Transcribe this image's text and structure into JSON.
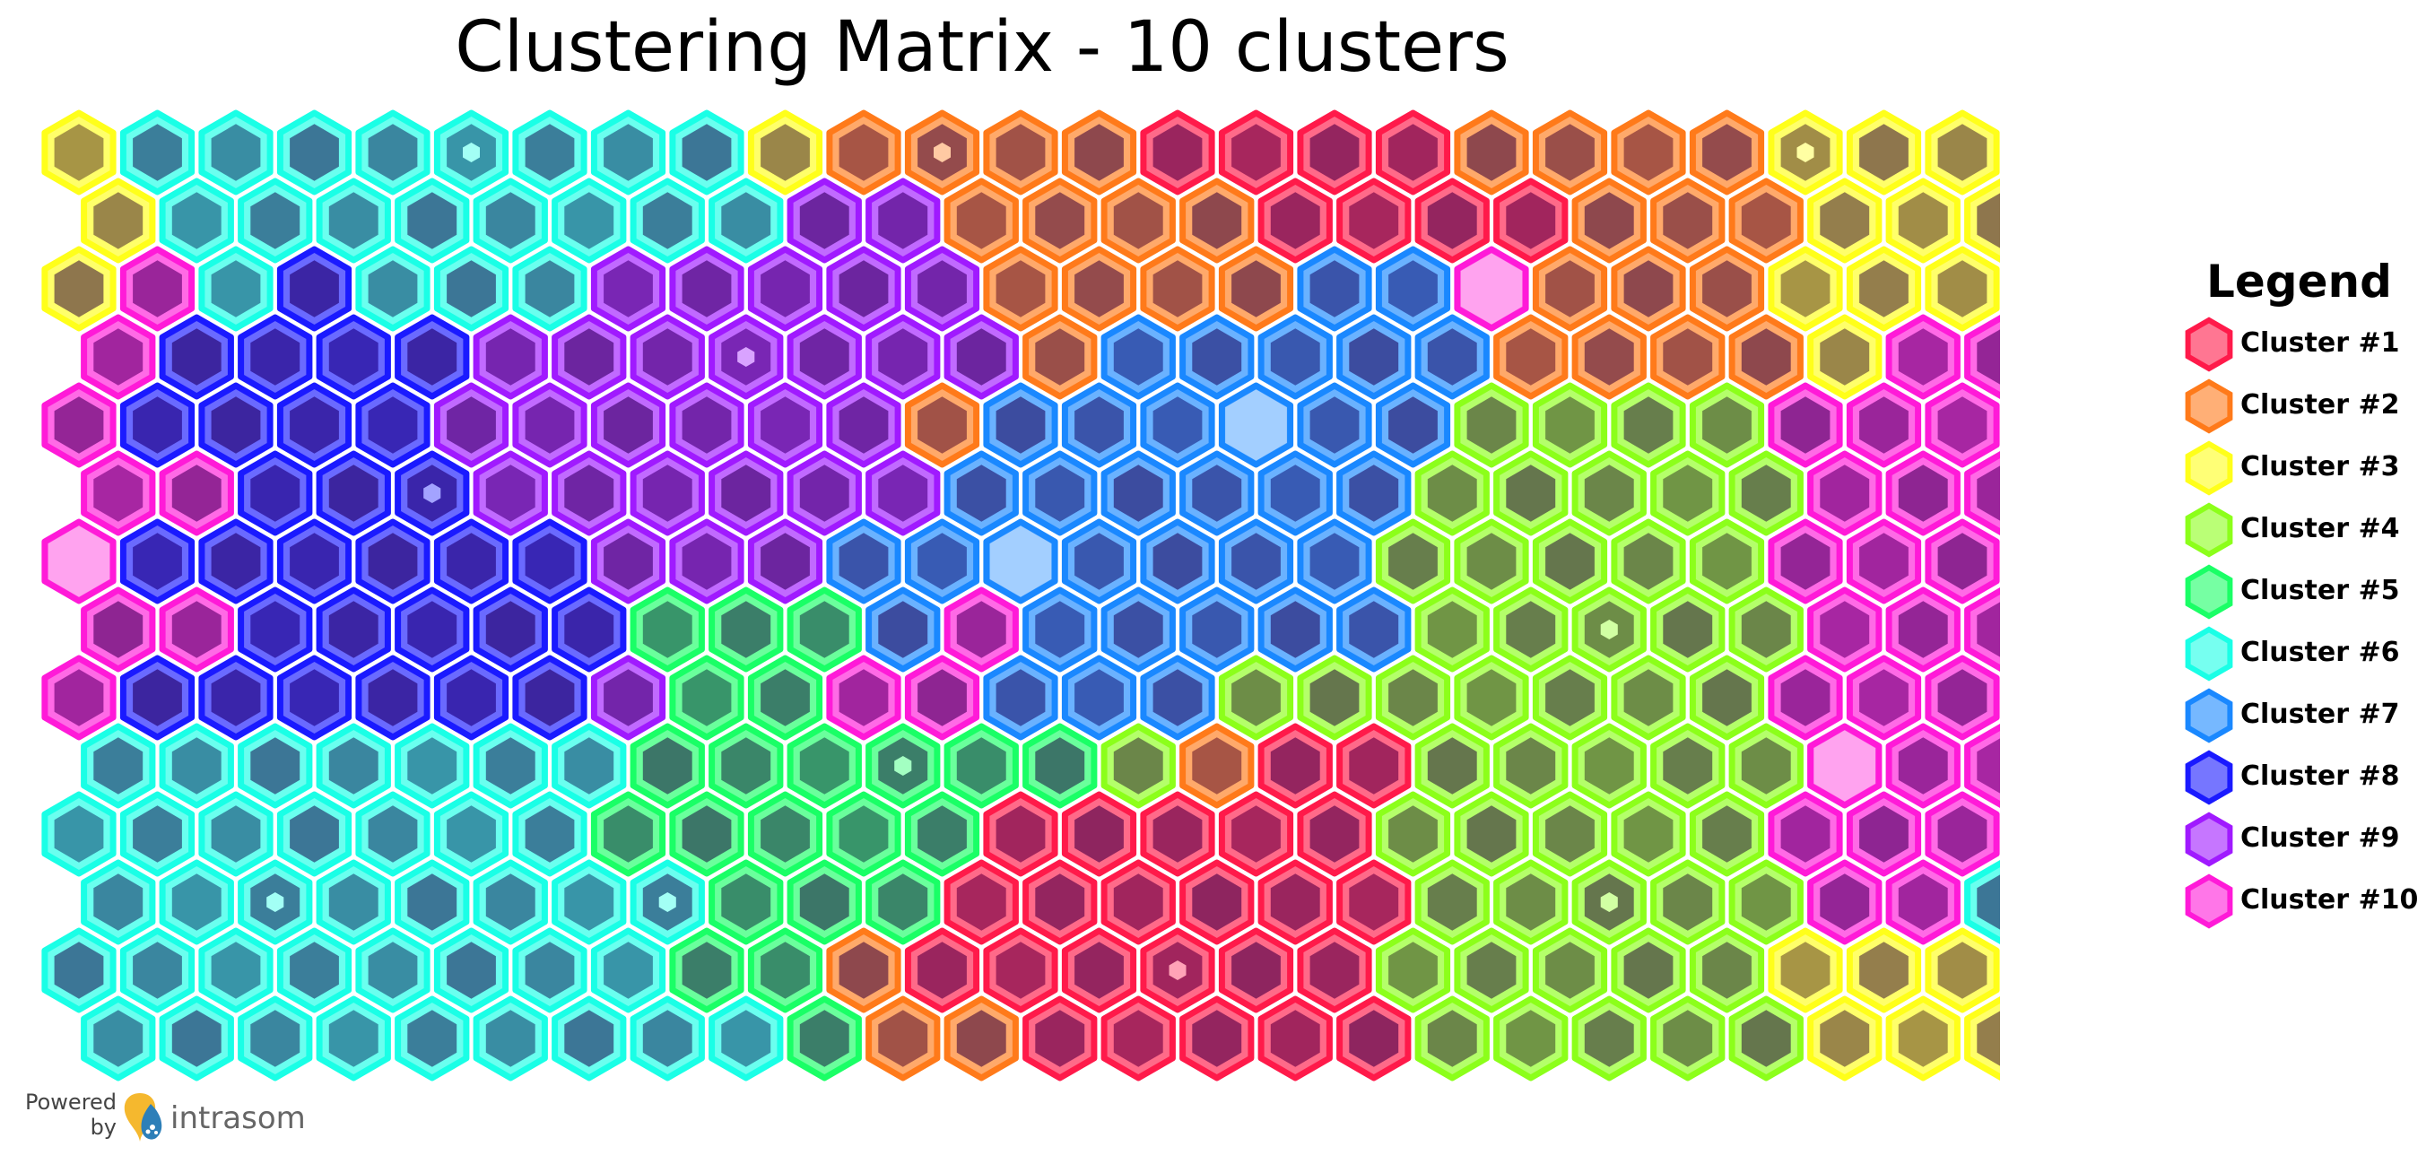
{
  "chart_data": {
    "type": "heatmap",
    "title": "Clustering Matrix - 10 clusters",
    "grid": {
      "columns": 25,
      "rows": 14,
      "hex": true
    },
    "legend": {
      "title": "Legend",
      "placement": "right",
      "entries": [
        {
          "label": "Cluster #1",
          "color": "#ff1a4a"
        },
        {
          "label": "Cluster #2",
          "color": "#ff7a1a"
        },
        {
          "label": "Cluster #3",
          "color": "#ffff1a"
        },
        {
          "label": "Cluster #4",
          "color": "#8cff1a"
        },
        {
          "label": "Cluster #5",
          "color": "#1aff66"
        },
        {
          "label": "Cluster #6",
          "color": "#1affe6"
        },
        {
          "label": "Cluster #7",
          "color": "#1a88ff"
        },
        {
          "label": "Cluster #8",
          "color": "#1a1aff"
        },
        {
          "label": "Cluster #9",
          "color": "#a01aff"
        },
        {
          "label": "Cluster #10",
          "color": "#ff1ad8"
        }
      ]
    },
    "cluster_map": [
      "2555555552111100001111222",
      "2555555558811110000111222",
      "2957555888881111669111222",
      "9777788888881666661111299",
      "9777788888816666663333999",
      "9977788888866666633333999",
      "9777777888666666633333999",
      "9977777444696666633333999",
      "9777777844996663333333999",
      "5555555444444310033333999",
      "5555555444440000033333999",
      "5555555544400000033333995",
      "5555555544100000033333222",
      "5555555554110000033333222"
    ],
    "centers": [
      {
        "cluster": 1,
        "col": 11,
        "row": 0
      },
      {
        "cluster": 1,
        "col": 18,
        "row": 2
      },
      {
        "cluster": 2,
        "col": 22,
        "row": 0
      },
      {
        "cluster": 3,
        "col": 19,
        "row": 7
      },
      {
        "cluster": 3,
        "col": 19,
        "row": 11
      },
      {
        "cluster": 4,
        "col": 10,
        "row": 9
      },
      {
        "cluster": 5,
        "col": 5,
        "row": 0
      },
      {
        "cluster": 5,
        "col": 2,
        "row": 11
      },
      {
        "cluster": 5,
        "col": 7,
        "row": 11
      },
      {
        "cluster": 6,
        "col": 15,
        "row": 4
      },
      {
        "cluster": 6,
        "col": 12,
        "row": 6
      },
      {
        "cluster": 7,
        "col": 4,
        "row": 5
      },
      {
        "cluster": 8,
        "col": 8,
        "row": 3
      },
      {
        "cluster": 9,
        "col": 0,
        "row": 6
      },
      {
        "cluster": 9,
        "col": 22,
        "row": 9
      },
      {
        "cluster": 10,
        "col": 14,
        "row": 12
      }
    ]
  },
  "footer": {
    "powered_by": "Powered by",
    "brand": "intrasom",
    "logo_icon": "intrasom-logo-icon"
  }
}
